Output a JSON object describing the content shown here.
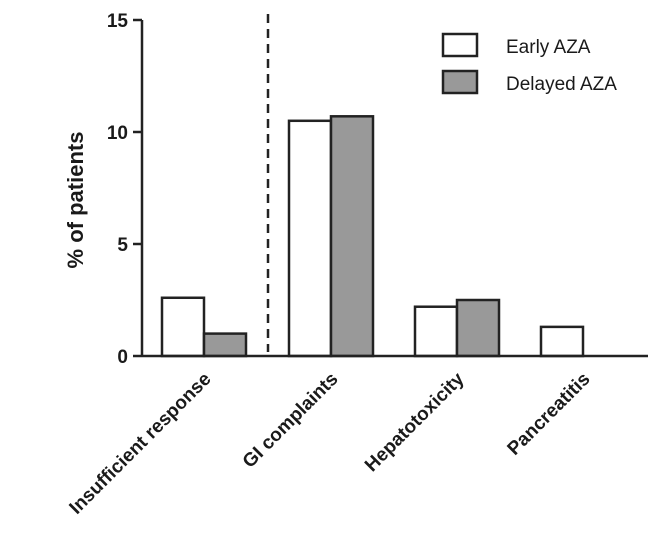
{
  "chart_data": {
    "type": "bar",
    "categories": [
      "Insufficient response",
      "GI complaints",
      "Hepatotoxicity",
      "Pancreatitis"
    ],
    "series": [
      {
        "name": "Early AZA",
        "values": [
          2.6,
          10.5,
          2.2,
          1.3
        ],
        "color": "#ffffff"
      },
      {
        "name": "Delayed AZA",
        "values": [
          1.0,
          10.7,
          2.5,
          0
        ],
        "color": "#999999"
      }
    ],
    "yticks": [
      "0",
      "5",
      "10",
      "15"
    ],
    "ylabel": "% of patients",
    "xlabel": "",
    "title": "",
    "ylim": [
      0,
      15
    ],
    "legend_position": "top-right",
    "divider_after_category": 0,
    "grid": false
  }
}
